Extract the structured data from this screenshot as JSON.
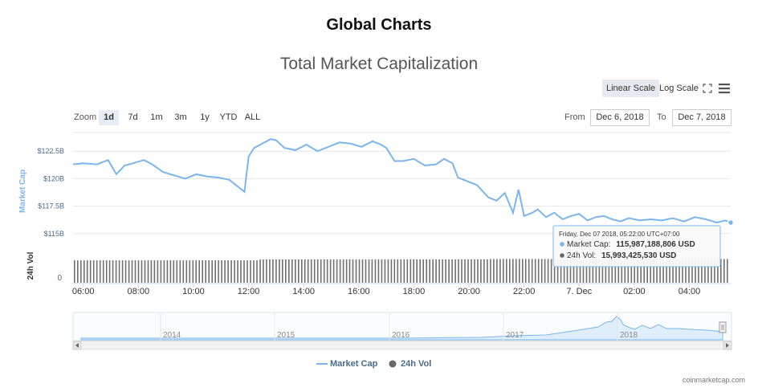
{
  "page": {
    "heading": "Global Charts",
    "credit": "coinmarketcap.com"
  },
  "controls": {
    "scale_linear": "Linear Scale",
    "scale_log": "Log Scale",
    "zoom_label": "Zoom",
    "zoom_options": [
      "1d",
      "7d",
      "1m",
      "3m",
      "1y",
      "YTD",
      "ALL"
    ],
    "zoom_selected": "1d",
    "from_label": "From",
    "from_value": "Dec 6, 2018",
    "to_label": "To",
    "to_value": "Dec 7, 2018"
  },
  "tooltip": {
    "header": "Friday, Dec 07 2018, 05:22:00 UTC+07:00",
    "cap_label": "Market Cap:",
    "cap_value": "115,987,188,806 USD",
    "vol_label": "24h Vol:",
    "vol_value": "15,993,425,530 USD"
  },
  "footer_legend": {
    "cap": "Market Cap",
    "vol": "24h Vol"
  },
  "colors": {
    "cap": "#7cb5ec",
    "vol": "#666666",
    "axis": "#4c6a8a"
  },
  "chart_data": {
    "type": "line",
    "title": "Total Market Capitalization",
    "ylabel": "Market Cap",
    "ylabel2": "24h Vol",
    "y_ticks": [
      115,
      117.5,
      120,
      122.5
    ],
    "y_tick_labels": [
      "$115B",
      "$117.5B",
      "$120B",
      "$122.5B"
    ],
    "ylim": [
      113.3,
      124.2
    ],
    "vol_tick_label": "0",
    "x_range_hours": [
      5.63,
      29.5
    ],
    "x_ticks": [
      6,
      8,
      10,
      12,
      14,
      16,
      18,
      20,
      22,
      24,
      26,
      28
    ],
    "x_tick_labels": [
      "06:00",
      "08:00",
      "10:00",
      "12:00",
      "14:00",
      "16:00",
      "18:00",
      "20:00",
      "22:00",
      "7. Dec",
      "02:00",
      "04:00"
    ],
    "series": [
      {
        "name": "Market Cap",
        "unit": "billion USD",
        "x_hours": [
          5.63,
          6.0,
          6.5,
          6.9,
          7.2,
          7.5,
          7.8,
          8.2,
          8.5,
          8.9,
          9.3,
          9.7,
          10.1,
          10.5,
          10.9,
          11.3,
          11.7,
          11.85,
          12.0,
          12.2,
          12.5,
          12.8,
          13.0,
          13.3,
          13.7,
          14.1,
          14.5,
          14.9,
          15.3,
          15.7,
          16.1,
          16.5,
          16.8,
          17.0,
          17.3,
          17.6,
          18.0,
          18.4,
          18.8,
          19.1,
          19.4,
          19.6,
          19.9,
          20.3,
          20.7,
          21.0,
          21.3,
          21.6,
          21.8,
          22.0,
          22.3,
          22.5,
          22.8,
          23.1,
          23.4,
          23.7,
          24.0,
          24.3,
          24.6,
          24.9,
          25.2,
          25.5,
          25.8,
          26.2,
          26.6,
          27.0,
          27.4,
          27.8,
          28.2,
          28.6,
          29.0,
          29.3,
          29.5
        ],
        "values": [
          121.3,
          121.4,
          121.3,
          121.7,
          120.4,
          121.2,
          121.4,
          121.7,
          121.3,
          120.6,
          120.3,
          120.0,
          120.4,
          120.2,
          120.1,
          119.9,
          119.1,
          118.8,
          122.0,
          122.8,
          123.2,
          123.6,
          123.5,
          122.8,
          122.6,
          123.1,
          122.5,
          122.9,
          123.3,
          123.2,
          122.9,
          123.4,
          123.1,
          122.8,
          121.6,
          121.6,
          121.8,
          121.2,
          121.3,
          121.8,
          121.4,
          120.1,
          119.8,
          119.4,
          118.3,
          118.0,
          118.7,
          116.9,
          119.0,
          116.6,
          116.9,
          117.2,
          116.5,
          116.9,
          116.3,
          116.6,
          116.8,
          116.2,
          116.5,
          116.6,
          116.3,
          116.1,
          116.4,
          116.2,
          116.3,
          116.2,
          116.4,
          116.1,
          116.5,
          116.3,
          116.0,
          116.2,
          116.0
        ]
      },
      {
        "name": "24h Vol",
        "unit": "billion USD",
        "note": "volume bars, near-constant ~15-16B",
        "values": [
          15.4,
          15.5,
          15.8,
          16.0,
          15.99
        ]
      }
    ],
    "navigator": {
      "x_labels": [
        "2014",
        "2015",
        "2016",
        "2017",
        "2018"
      ]
    }
  }
}
